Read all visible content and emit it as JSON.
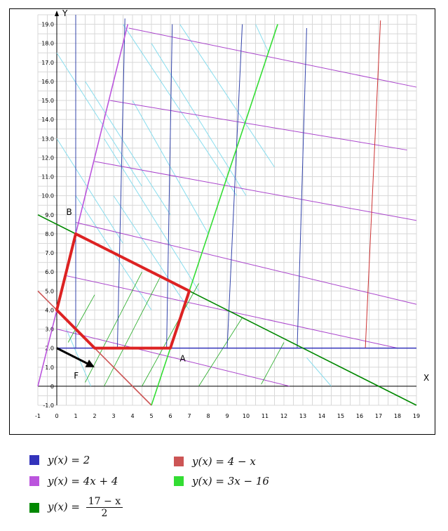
{
  "chart_data": {
    "type": "line",
    "xlim": [
      -1,
      19
    ],
    "ylim": [
      -1,
      19.5
    ],
    "x_ticks": [
      "-1",
      "0",
      "1",
      "2",
      "3",
      "4",
      "5",
      "6",
      "7",
      "8",
      "9",
      "10",
      "11",
      "12",
      "13",
      "14",
      "15",
      "16",
      "17",
      "18",
      "19"
    ],
    "y_ticks": [
      "-1.0",
      "0",
      "1.0",
      "2.0",
      "3.0",
      "4.0",
      "5.0",
      "6.0",
      "7.0",
      "8.0",
      "9.0",
      "10.0",
      "11.0",
      "12.0",
      "13.0",
      "14.0",
      "15.0",
      "16.0",
      "17.0",
      "18.0",
      "19.0"
    ],
    "xlabel": "X",
    "ylabel": "Y",
    "grid": true,
    "series": [
      {
        "name": "y(x) = 2",
        "color": "#3333bb",
        "points": [
          [
            0,
            2
          ],
          [
            19,
            2
          ]
        ]
      },
      {
        "name": "y(x) = 4x + 4",
        "color": "#bb55dd",
        "points": [
          [
            -1,
            0
          ],
          [
            3.75,
            19
          ]
        ]
      },
      {
        "name": "y(x) = 17 − x / 2",
        "color": "#008800",
        "points": [
          [
            -1,
            9
          ],
          [
            19,
            -1
          ]
        ]
      },
      {
        "name": "y(x) = 4 − x",
        "color": "#cc5555",
        "points": [
          [
            -1,
            5
          ],
          [
            5,
            -1
          ]
        ]
      },
      {
        "name": "y(x) = 3x − 16",
        "color": "#33dd33",
        "points": [
          [
            5,
            -1
          ],
          [
            11.67,
            19
          ]
        ]
      }
    ],
    "feasible_region": {
      "color": "#dd2222",
      "points": [
        [
          1,
          8
        ],
        [
          7,
          5
        ],
        [
          6,
          2
        ],
        [
          2,
          2
        ],
        [
          0,
          4
        ]
      ]
    },
    "gradient_arrow": {
      "color": "#000000",
      "from": [
        0,
        2
      ],
      "to": [
        2,
        1
      ]
    },
    "point_labels": [
      {
        "text": "B",
        "x": 0.5,
        "y": 9.0
      },
      {
        "text": "A",
        "x": 6.5,
        "y": 1.3
      },
      {
        "text": "F",
        "x": 0.9,
        "y": 0.4
      }
    ]
  },
  "legend": [
    {
      "formula": "y(x) = 2",
      "color": "#3333bb"
    },
    {
      "formula": "y(x) = 4 − x",
      "color": "#cc5555"
    },
    {
      "formula": "y(x) = 4x + 4",
      "color": "#bb55dd"
    },
    {
      "formula": "y(x) = 3x − 16",
      "color": "#33dd33"
    },
    {
      "formula_lhs": "y(x) = ",
      "numerator": "17 − x",
      "denominator": "2",
      "color": "#008800"
    }
  ]
}
